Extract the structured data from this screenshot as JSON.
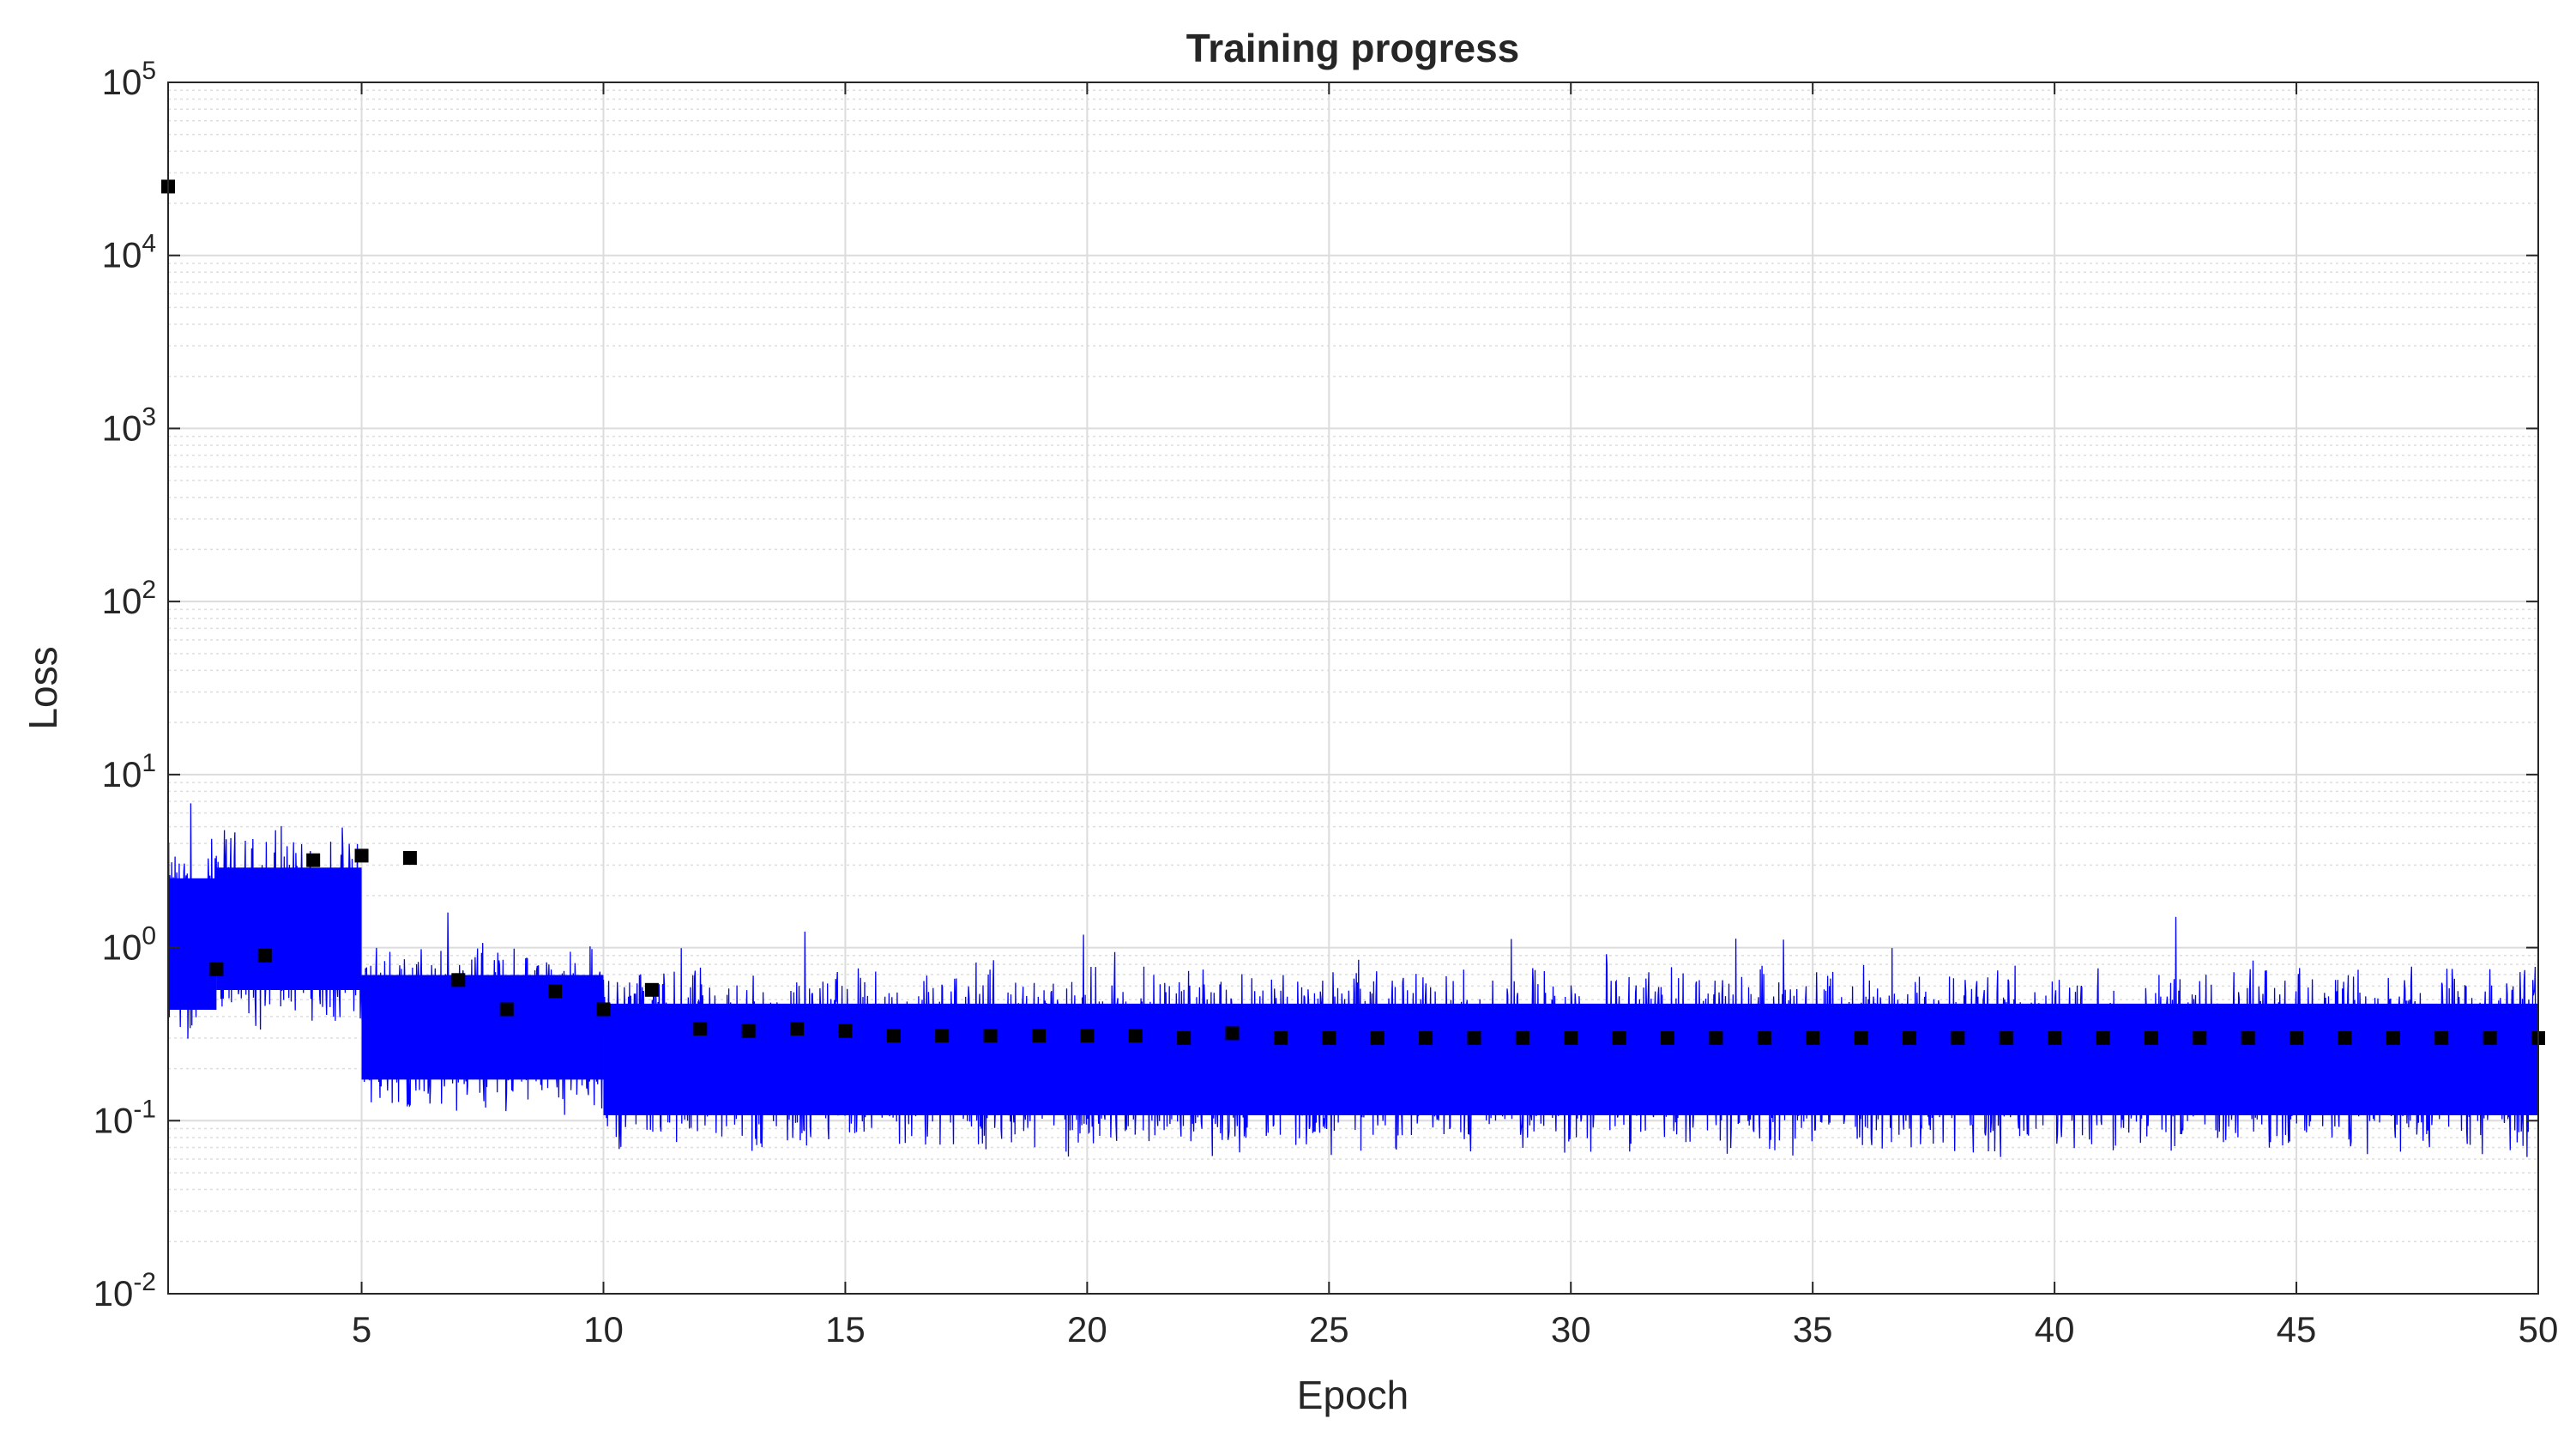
{
  "chart_data": {
    "type": "scatter",
    "title": "Training progress",
    "xlabel": "Epoch",
    "ylabel": "Loss",
    "xlim": [
      1,
      50
    ],
    "ylim": [
      0.01,
      100000
    ],
    "yscale": "log",
    "grid": true,
    "minor_grid": true,
    "x_ticks": [
      5,
      10,
      15,
      20,
      25,
      30,
      35,
      40,
      45,
      50
    ],
    "x_tick_labels": [
      "5",
      "10",
      "15",
      "20",
      "25",
      "30",
      "35",
      "40",
      "45",
      "50"
    ],
    "y_ticks": [
      0.01,
      0.1,
      1,
      10,
      100,
      1000,
      10000,
      100000
    ],
    "y_tick_labels": [
      {
        "base": "10",
        "exp": "-2"
      },
      {
        "base": "10",
        "exp": "-1"
      },
      {
        "base": "10",
        "exp": "0"
      },
      {
        "base": "10",
        "exp": "1"
      },
      {
        "base": "10",
        "exp": "2"
      },
      {
        "base": "10",
        "exp": "3"
      },
      {
        "base": "10",
        "exp": "4"
      },
      {
        "base": "10",
        "exp": "5"
      }
    ],
    "series": [
      {
        "kind": "line",
        "color": "#0000ff",
        "description_band": [
          {
            "x": [
              1,
              2
            ],
            "low": 0.22,
            "high": 5.0
          },
          {
            "x": [
              2,
              5
            ],
            "low": 0.3,
            "high": 5.5
          },
          {
            "x": [
              5,
              10
            ],
            "low": 0.1,
            "high": 1.2
          },
          {
            "x": [
              10,
              50
            ],
            "low": 0.06,
            "high": 0.85
          }
        ]
      },
      {
        "kind": "marker",
        "marker": "square",
        "color": "#000000",
        "x": [
          1,
          2,
          3,
          4,
          5,
          6,
          7,
          8,
          9,
          10,
          11,
          12,
          13,
          14,
          15,
          16,
          17,
          18,
          19,
          20,
          21,
          22,
          23,
          24,
          25,
          26,
          27,
          28,
          29,
          30,
          31,
          32,
          33,
          34,
          35,
          36,
          37,
          38,
          39,
          40,
          41,
          42,
          43,
          44,
          45,
          46,
          47,
          48,
          49,
          50
        ],
        "y": [
          25000,
          0.75,
          0.9,
          3.2,
          3.4,
          3.3,
          0.65,
          0.44,
          0.56,
          0.44,
          0.57,
          0.34,
          0.33,
          0.34,
          0.33,
          0.31,
          0.31,
          0.31,
          0.31,
          0.31,
          0.31,
          0.3,
          0.32,
          0.3,
          0.3,
          0.3,
          0.3,
          0.3,
          0.3,
          0.3,
          0.3,
          0.3,
          0.3,
          0.3,
          0.3,
          0.3,
          0.3,
          0.3,
          0.3,
          0.3,
          0.3,
          0.3,
          0.3,
          0.3,
          0.3,
          0.3,
          0.3,
          0.3,
          0.3,
          0.3
        ]
      }
    ]
  }
}
